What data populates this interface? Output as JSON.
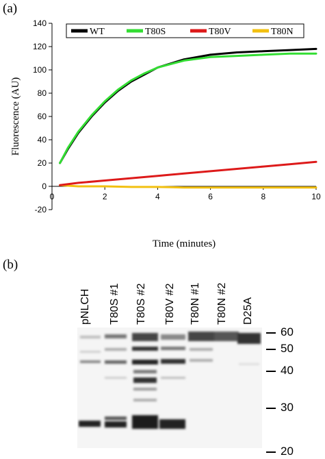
{
  "panel_a_label": "(a)",
  "panel_b_label": "(b)",
  "chart_data": {
    "type": "line",
    "xlabel": "Time (minutes)",
    "ylabel": "Fluorescence (AU)",
    "xlim": [
      0,
      10
    ],
    "ylim": [
      -20,
      140
    ],
    "xticks": [
      0,
      2,
      4,
      6,
      8,
      10
    ],
    "yticks": [
      -20,
      0,
      20,
      40,
      60,
      80,
      100,
      120,
      140
    ],
    "grid": false,
    "legend_position": "top",
    "series": [
      {
        "name": "WT",
        "color": "#000000",
        "x": [
          0.3,
          0.6,
          1,
          1.5,
          2,
          2.5,
          3,
          3.5,
          4,
          5,
          6,
          7,
          8,
          9,
          10
        ],
        "y": [
          20,
          32,
          46,
          60,
          72,
          82,
          90,
          96,
          102,
          109,
          113,
          115,
          116,
          117,
          118
        ]
      },
      {
        "name": "T80S",
        "color": "#33dd33",
        "x": [
          0.3,
          0.6,
          1,
          1.5,
          2,
          2.5,
          3,
          3.5,
          4,
          5,
          6,
          7,
          8,
          9,
          10
        ],
        "y": [
          20,
          33,
          47,
          61,
          73,
          83,
          91,
          97,
          102,
          108,
          111,
          112,
          113,
          114,
          114
        ]
      },
      {
        "name": "T80V",
        "color": "#dd1a1a",
        "x": [
          0.3,
          1,
          2,
          3,
          4,
          5,
          6,
          7,
          8,
          9,
          10
        ],
        "y": [
          1,
          3,
          5,
          7,
          9,
          11,
          13,
          15,
          17,
          19,
          21
        ]
      },
      {
        "name": "T80N",
        "color": "#f2c010",
        "x": [
          0.3,
          1,
          2,
          3,
          4,
          5,
          6,
          7,
          8,
          9,
          10
        ],
        "y": [
          1,
          0,
          0,
          -0.5,
          -0.5,
          -1,
          -1,
          -1,
          -1,
          -1,
          -1
        ]
      }
    ]
  },
  "blot": {
    "lanes": [
      "pNLCH",
      "T80S #1",
      "T80S #2",
      "T80V #2",
      "T80N #1",
      "T80N #2",
      "D25A"
    ],
    "markers": [
      "60",
      "50",
      "40",
      "30",
      "20"
    ]
  }
}
